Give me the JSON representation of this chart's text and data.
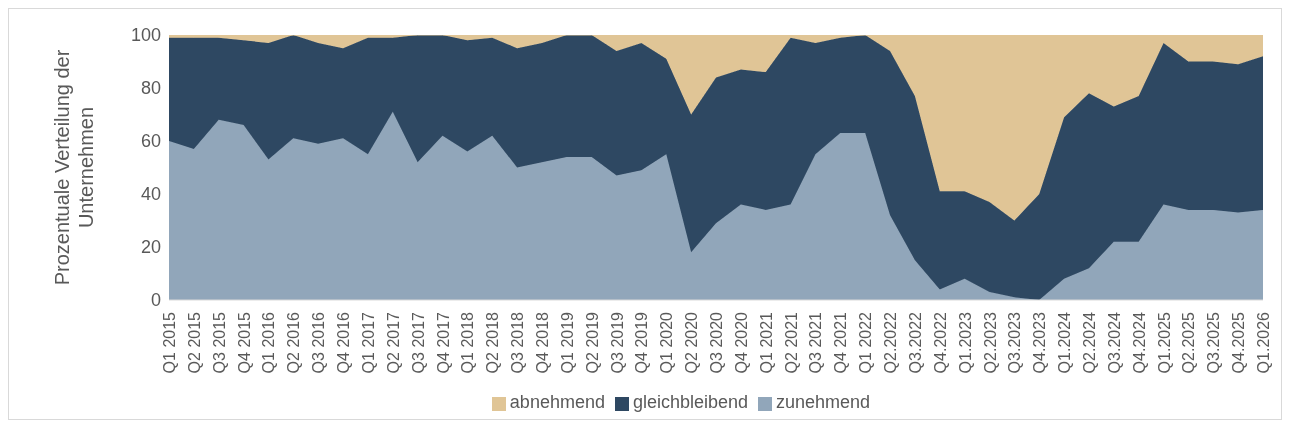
{
  "chart_data": {
    "type": "area",
    "stacked": true,
    "ylabel": "Prozentuale Verteilung der Unternehmen",
    "categories": [
      "Q1 2015",
      "Q2 2015",
      "Q3 2015",
      "Q4 2015",
      "Q1 2016",
      "Q2 2016",
      "Q3 2016",
      "Q4 2016",
      "Q1 2017",
      "Q2 2017",
      "Q3 2017",
      "Q4 2017",
      "Q1 2018",
      "Q2 2018",
      "Q3 2018",
      "Q4 2018",
      "Q1 2019",
      "Q2 2019",
      "Q3 2019",
      "Q4 2019",
      "Q1 2020",
      "Q2 2020",
      "Q3 2020",
      "Q4 2020",
      "Q1 2021",
      "Q2 2021",
      "Q3 2021",
      "Q4 2021",
      "Q1 2022",
      "Q2.2022",
      "Q3.2022",
      "Q4.2022",
      "Q1.2023",
      "Q2.2023",
      "Q3.2023",
      "Q4.2023",
      "Q1.2024",
      "Q2.2024",
      "Q3.2024",
      "Q4.2024",
      "Q1.2025",
      "Q2.2025",
      "Q3.2025",
      "Q4.2025",
      "Q1.2026"
    ],
    "series": [
      {
        "name": "zunehmend",
        "color": "#91a6ba",
        "values": [
          60,
          57,
          68,
          66,
          53,
          61,
          59,
          61,
          55,
          71,
          52,
          62,
          56,
          62,
          50,
          52,
          54,
          54,
          47,
          49,
          55,
          18,
          29,
          36,
          34,
          36,
          55,
          63,
          63,
          32,
          15,
          4,
          8,
          3,
          1,
          0,
          8,
          12,
          22,
          22,
          36,
          34,
          34,
          33,
          34
        ]
      },
      {
        "name": "gleichbleibend",
        "color": "#2e4862",
        "values": [
          39,
          42,
          31,
          32,
          44,
          39,
          38,
          34,
          44,
          28,
          48,
          38,
          42,
          37,
          45,
          45,
          46,
          46,
          47,
          48,
          36,
          52,
          55,
          51,
          52,
          63,
          42,
          36,
          37,
          62,
          62,
          37,
          33,
          34,
          29,
          40,
          61,
          66,
          51,
          55,
          61,
          56,
          56,
          56,
          58
        ]
      },
      {
        "name": "abnehmend",
        "color": "#e0c596",
        "values": [
          1,
          1,
          1,
          2,
          3,
          0,
          3,
          5,
          1,
          1,
          0,
          0,
          2,
          1,
          5,
          3,
          0,
          0,
          6,
          3,
          9,
          30,
          16,
          13,
          14,
          1,
          3,
          1,
          0,
          6,
          23,
          59,
          59,
          63,
          70,
          60,
          31,
          22,
          27,
          23,
          3,
          10,
          10,
          11,
          8
        ]
      }
    ],
    "ylim": [
      0,
      100
    ],
    "yticks": [
      0,
      20,
      40,
      60,
      80,
      100
    ],
    "legend": "bottom"
  }
}
